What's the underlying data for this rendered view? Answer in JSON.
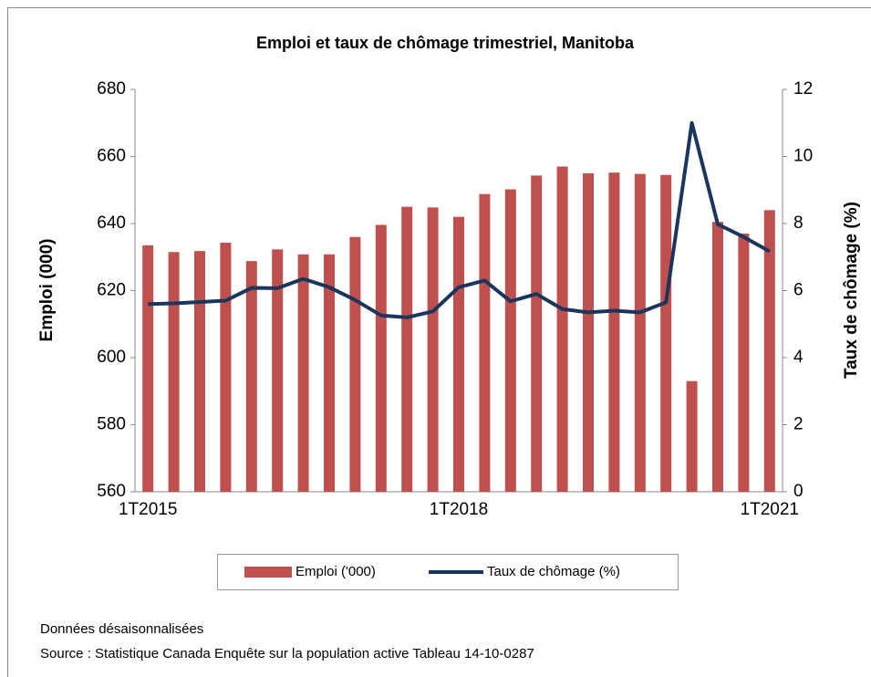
{
  "chart_data": {
    "type": "bar",
    "title": "Emploi et taux de chômage trimestriel, Manitoba",
    "y_label": "Emploi (000)",
    "y2_label": "Taux de chômage (%)",
    "categories": [
      "1T2015",
      null,
      null,
      null,
      null,
      null,
      null,
      null,
      null,
      null,
      null,
      null,
      "1T2018",
      null,
      null,
      null,
      null,
      null,
      null,
      null,
      null,
      null,
      null,
      null,
      "1T2021"
    ],
    "series": [
      {
        "name": "Emploi ('000)",
        "type": "bar",
        "color": "#c0504d",
        "values": [
          633.5,
          631.5,
          631.8,
          634.3,
          628.8,
          632.3,
          630.8,
          630.8,
          636,
          639.6,
          645,
          644.8,
          642,
          648.8,
          650.2,
          654.3,
          657,
          655,
          655.2,
          654.8,
          654.5,
          593,
          640.5,
          637,
          644
        ]
      },
      {
        "name": "Taux de chômage (%)",
        "type": "line",
        "axis": "y2",
        "color": "#1b365d",
        "values": [
          5.6,
          5.62,
          5.66,
          5.7,
          6.08,
          6.07,
          6.35,
          6.1,
          5.72,
          5.26,
          5.2,
          5.38,
          6.1,
          6.3,
          5.68,
          5.9,
          5.45,
          5.35,
          5.4,
          5.35,
          5.65,
          11,
          7.98,
          7.6,
          7.17
        ]
      }
    ],
    "ylim": [
      560,
      680
    ],
    "yticks": [
      560,
      580,
      600,
      620,
      640,
      660,
      680
    ],
    "y2lim": [
      0,
      12
    ],
    "y2ticks": [
      0,
      2,
      4,
      6,
      8,
      10,
      12
    ],
    "legend": "bottom",
    "notes": [
      "Données désaisonnalisées",
      "Source : Statistique Canada Enquête sur la population active Tableau 14-10-0287"
    ]
  }
}
